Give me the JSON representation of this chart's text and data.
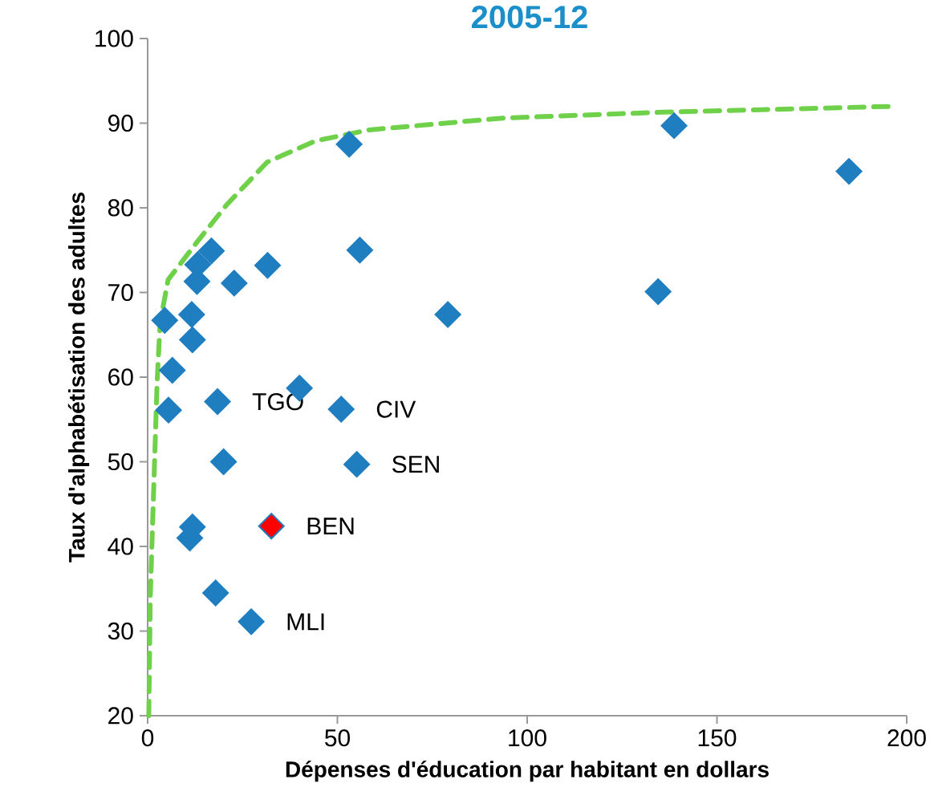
{
  "chart_data": {
    "type": "scatter",
    "title": "2005-12",
    "xlabel": "Dépenses d'éducation par habitant en dollars",
    "ylabel": "Taux d'alphabétisation des adultes",
    "xlim": [
      0,
      200
    ],
    "ylim": [
      20,
      100
    ],
    "xticks": [
      0,
      50,
      100,
      150,
      200
    ],
    "yticks": [
      20,
      30,
      40,
      50,
      60,
      70,
      80,
      90,
      100
    ],
    "grid": false,
    "marker": "diamond",
    "series": [
      {
        "color": "#1f7ec0",
        "x": [
          53.1,
          138.7,
          184.8,
          16.8,
          13.2,
          13.0,
          22.8,
          31.6,
          55.9,
          11.6,
          4.5,
          11.8,
          79.1,
          134.5,
          6.5,
          40.0,
          18.4,
          5.5,
          51.0,
          20.0,
          55.1,
          11.8,
          11.1,
          32.6,
          17.9,
          27.3
        ],
        "values": [
          87.5,
          89.7,
          84.3,
          74.9,
          73.3,
          71.3,
          71.1,
          73.2,
          75.0,
          67.4,
          66.7,
          64.4,
          67.4,
          70.1,
          60.8,
          58.7,
          57.1,
          56.1,
          56.2,
          50.0,
          49.7,
          42.3,
          41.0,
          42.4,
          34.5,
          31.1
        ],
        "colors": [
          "#1f7ec0",
          "#1f7ec0",
          "#1f7ec0",
          "#1f7ec0",
          "#1f7ec0",
          "#1f7ec0",
          "#1f7ec0",
          "#1f7ec0",
          "#1f7ec0",
          "#1f7ec0",
          "#1f7ec0",
          "#1f7ec0",
          "#1f7ec0",
          "#1f7ec0",
          "#1f7ec0",
          "#1f7ec0",
          "#1f7ec0",
          "#1f7ec0",
          "#1f7ec0",
          "#1f7ec0",
          "#1f7ec0",
          "#1f7ec0",
          "#1f7ec0",
          "#ff0000",
          "#1f7ec0",
          "#1f7ec0"
        ]
      },
      {
        "type": "line",
        "color": "#6fd04a",
        "line_style": "dashed",
        "marker": "none",
        "x": [
          0.3,
          0.7,
          1.6,
          2.5,
          3.3,
          5.4,
          13.1,
          20.9,
          31.5,
          44.2,
          58.3,
          93.5,
          135.9,
          197.3
        ],
        "values": [
          20,
          34.2,
          46.9,
          59.5,
          66.5,
          71.5,
          76.0,
          80.4,
          85.4,
          87.9,
          89.2,
          90.6,
          91.3,
          92.0
        ]
      }
    ],
    "annotations": [
      {
        "text": "TGO",
        "x": 18.4,
        "y": 57.1
      },
      {
        "text": "CIV",
        "x": 51.0,
        "y": 56.2
      },
      {
        "text": "SEN",
        "x": 55.1,
        "y": 49.7
      },
      {
        "text": "BEN",
        "x": 32.6,
        "y": 42.4
      },
      {
        "text": "MLI",
        "x": 27.3,
        "y": 31.1
      }
    ]
  }
}
